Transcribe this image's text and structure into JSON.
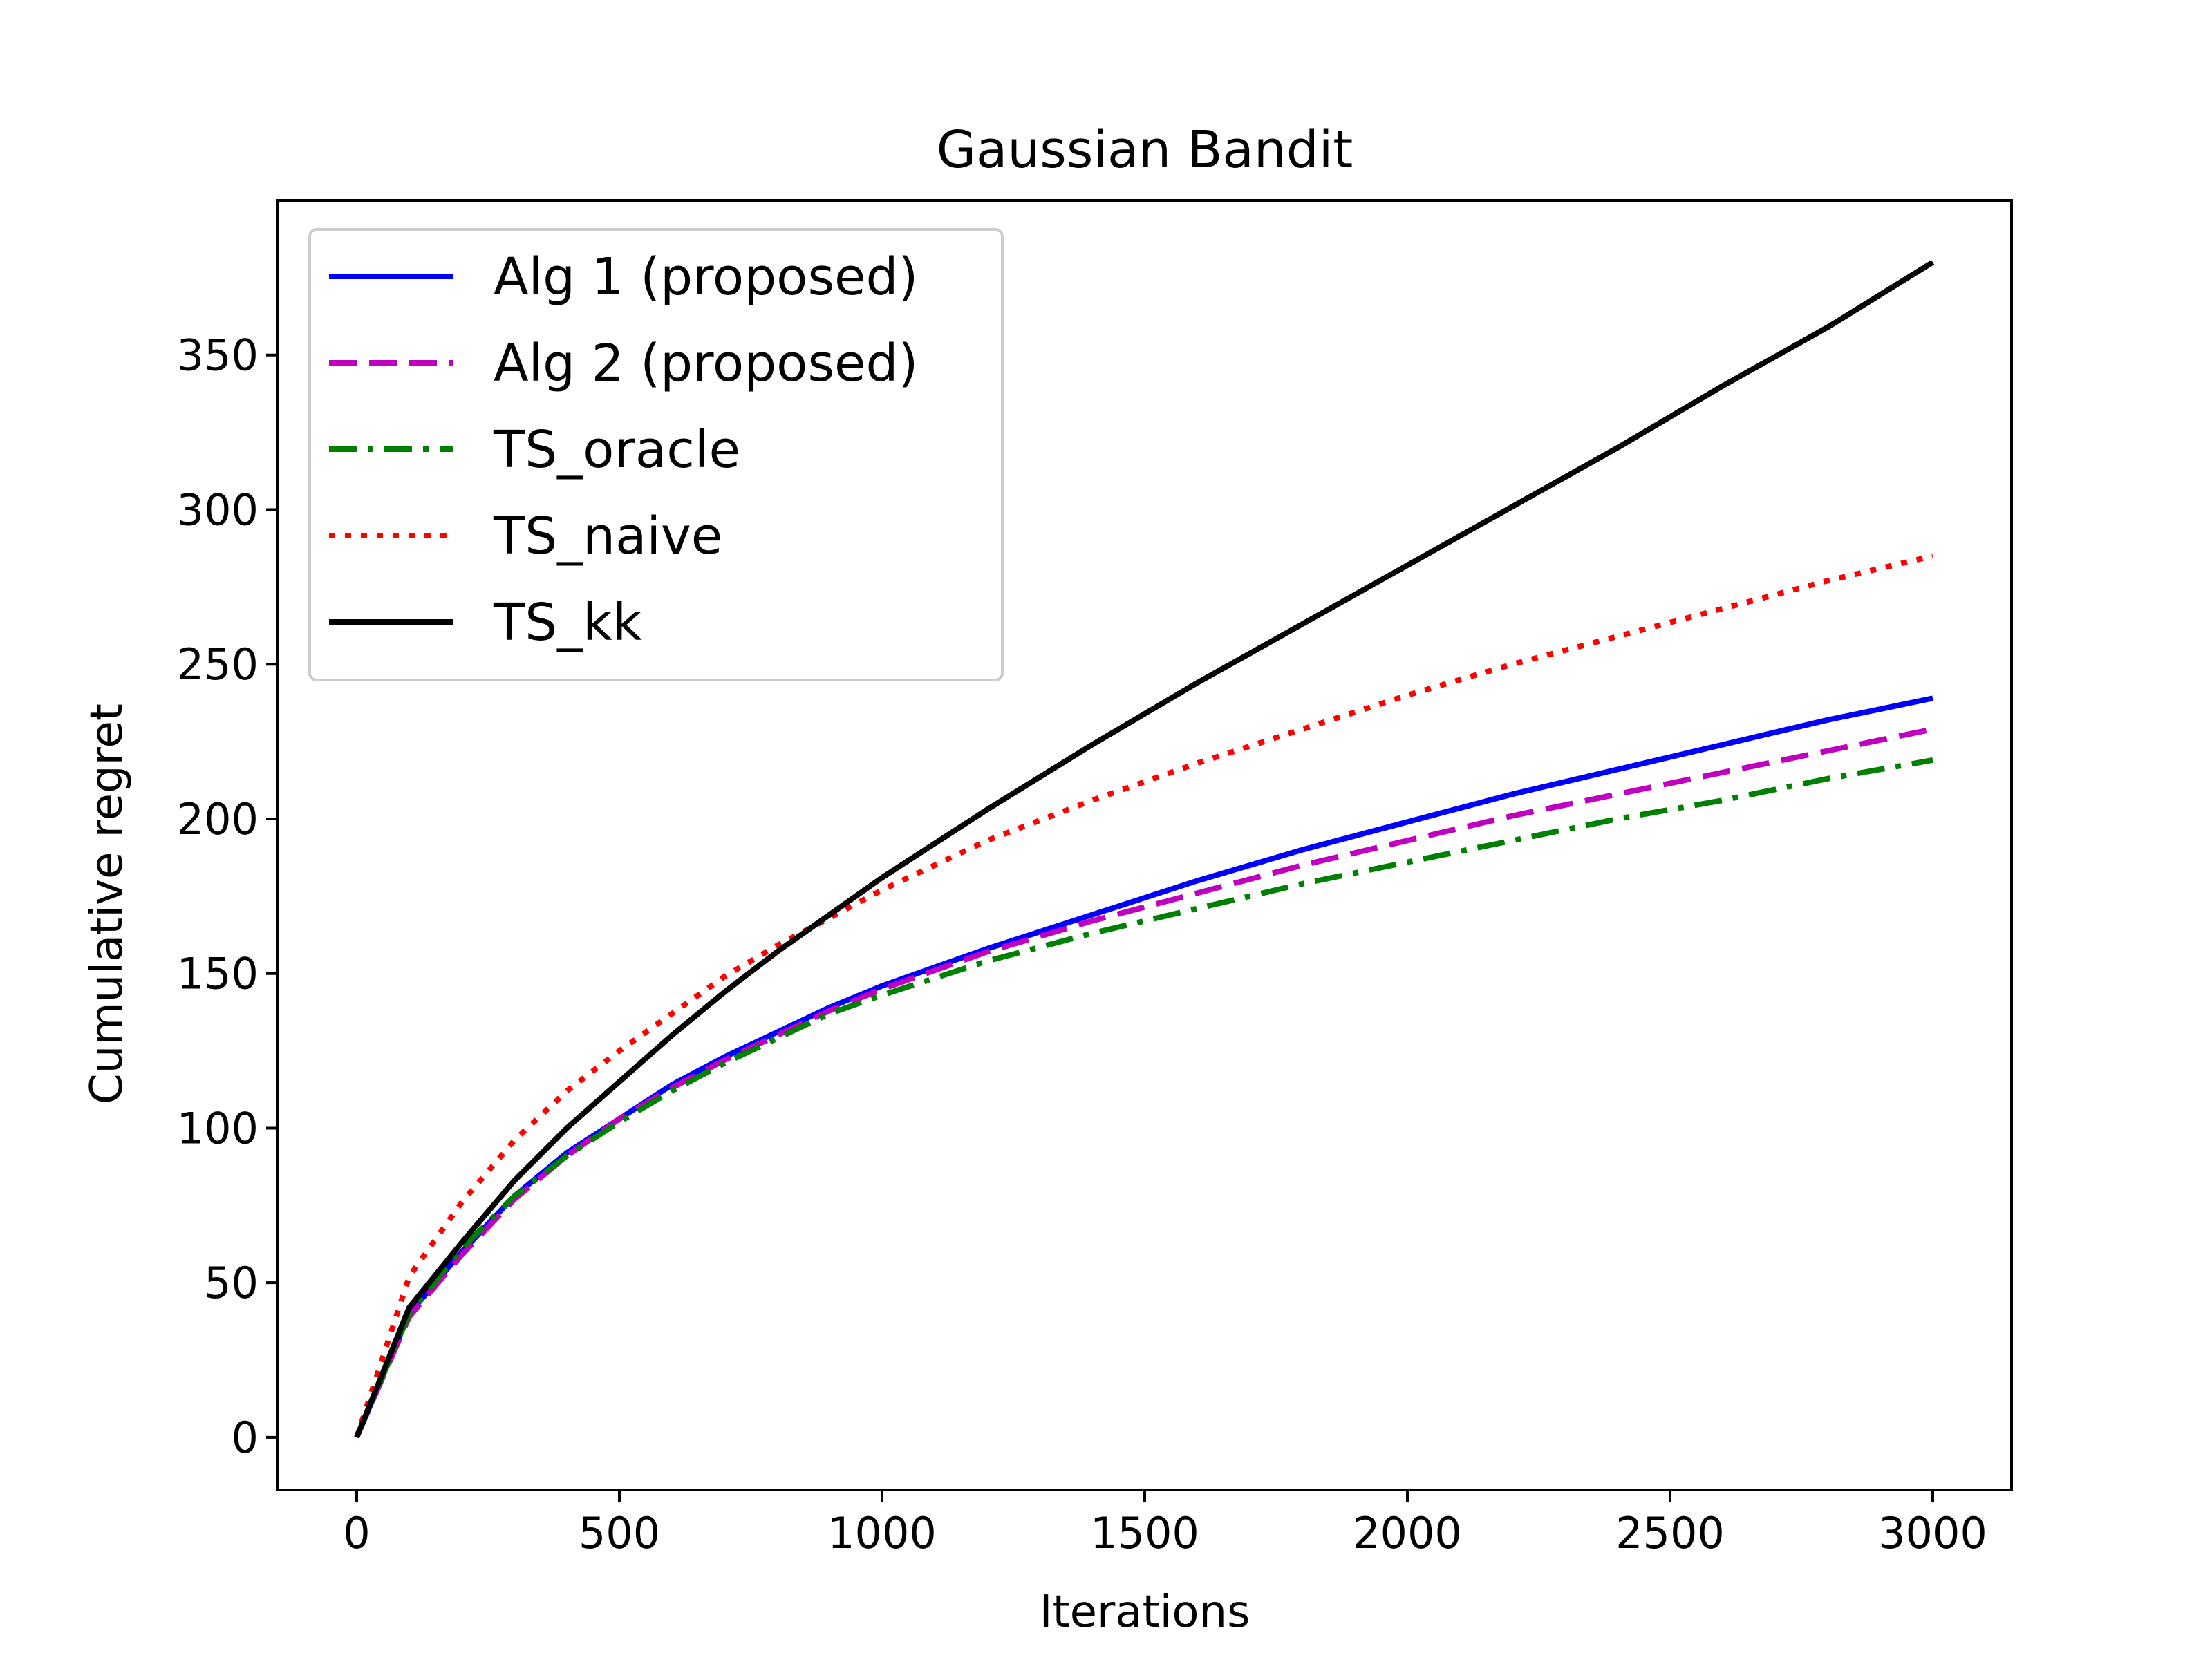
{
  "chart_data": {
    "type": "line",
    "title": "Gaussian Bandit",
    "xlabel": "Iterations",
    "ylabel": "Cumulative regret",
    "xlim": [
      -150,
      3150
    ],
    "ylim": [
      -17,
      400
    ],
    "xticks": [
      0,
      500,
      1000,
      1500,
      2000,
      2500,
      3000
    ],
    "yticks": [
      0,
      50,
      100,
      150,
      200,
      250,
      300,
      350
    ],
    "xtick_labels": [
      "0",
      "500",
      "1000",
      "1500",
      "2000",
      "2500",
      "3000"
    ],
    "ytick_labels": [
      "0",
      "50",
      "100",
      "150",
      "200",
      "250",
      "300",
      "350"
    ],
    "grid": false,
    "legend_position": "top-left",
    "series": [
      {
        "name": "Alg 1 (proposed)",
        "color": "#0000ff",
        "style": "solid",
        "x": [
          0,
          100,
          200,
          300,
          400,
          500,
          600,
          700,
          800,
          900,
          1000,
          1200,
          1400,
          1600,
          1800,
          2000,
          2200,
          2400,
          2600,
          2800,
          3000
        ],
        "y": [
          0,
          40,
          60,
          78,
          92,
          103,
          114,
          123,
          131,
          139,
          146,
          158,
          169,
          180,
          190,
          199,
          208,
          216,
          224,
          232,
          239
        ]
      },
      {
        "name": "Alg 2 (proposed)",
        "color": "#bf00bf",
        "style": "dashed",
        "x": [
          0,
          100,
          200,
          300,
          400,
          500,
          600,
          700,
          800,
          900,
          1000,
          1200,
          1400,
          1600,
          1800,
          2000,
          2200,
          2400,
          2600,
          2800,
          3000
        ],
        "y": [
          0,
          39,
          59,
          77,
          91,
          103,
          113,
          122,
          130,
          138,
          145,
          157,
          167,
          176,
          185,
          193,
          201,
          208,
          215,
          222,
          229
        ]
      },
      {
        "name": "TS_oracle",
        "color": "#008000",
        "style": "dashdot",
        "x": [
          0,
          100,
          200,
          300,
          400,
          500,
          600,
          700,
          800,
          900,
          1000,
          1200,
          1400,
          1600,
          1800,
          2000,
          2200,
          2400,
          2600,
          2800,
          3000
        ],
        "y": [
          0,
          40,
          61,
          78,
          91,
          102,
          112,
          121,
          129,
          137,
          143,
          154,
          163,
          171,
          179,
          186,
          193,
          200,
          206,
          213,
          219
        ]
      },
      {
        "name": "TS_naive",
        "color": "#ff0000",
        "style": "dotted",
        "x": [
          0,
          100,
          200,
          300,
          400,
          500,
          600,
          700,
          800,
          900,
          1000,
          1200,
          1400,
          1600,
          1800,
          2000,
          2200,
          2400,
          2600,
          2800,
          3000
        ],
        "y": [
          0,
          52,
          76,
          96,
          112,
          125,
          137,
          149,
          159,
          168,
          177,
          193,
          206,
          218,
          229,
          240,
          250,
          259,
          268,
          277,
          285
        ]
      },
      {
        "name": "TS_kk",
        "color": "#000000",
        "style": "solid",
        "x": [
          0,
          100,
          200,
          300,
          400,
          500,
          600,
          700,
          800,
          900,
          1000,
          1200,
          1400,
          1600,
          1800,
          2000,
          2200,
          2400,
          2600,
          2800,
          3000
        ],
        "y": [
          0,
          42,
          63,
          83,
          100,
          115,
          130,
          144,
          157,
          169,
          181,
          203,
          224,
          244,
          263,
          282,
          301,
          320,
          340,
          359,
          380
        ]
      }
    ]
  }
}
